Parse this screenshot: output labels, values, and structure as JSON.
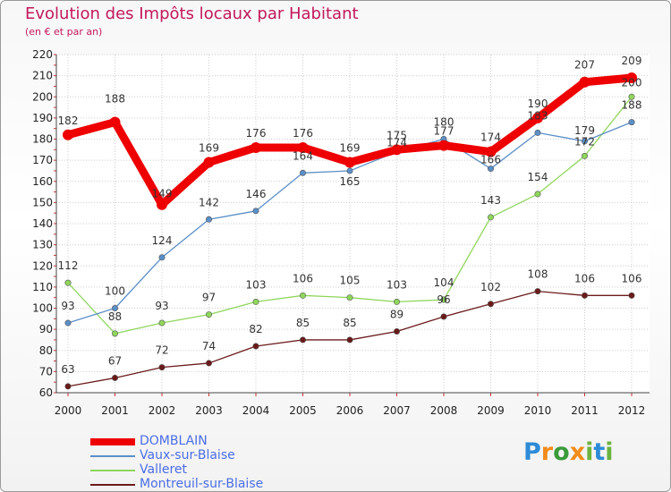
{
  "title": "Evolution des Impôts locaux par Habitant",
  "subtitle": "(en € et par an)",
  "logo_text": "Proxiti",
  "chart_data": {
    "type": "line",
    "x": [
      "2000",
      "2001",
      "2002",
      "2003",
      "2004",
      "2005",
      "2006",
      "2007",
      "2008",
      "2009",
      "2010",
      "2011",
      "2012"
    ],
    "ylim": [
      60,
      220
    ],
    "yticks": [
      60,
      70,
      80,
      90,
      100,
      110,
      120,
      130,
      140,
      150,
      160,
      170,
      180,
      190,
      200,
      210,
      220
    ],
    "grid": true,
    "legend_position": "bottom-left",
    "series": [
      {
        "name": "DOMBLAIN",
        "color": "#ee0000",
        "values": [
          182,
          188,
          149,
          169,
          176,
          176,
          169,
          175,
          177,
          174,
          190,
          207,
          209
        ]
      },
      {
        "name": "Vaux-sur-Blaise",
        "color": "#5b8fc7",
        "values": [
          93,
          100,
          124,
          142,
          146,
          164,
          165,
          174,
          180,
          166,
          183,
          179,
          188
        ]
      },
      {
        "name": "Valleret",
        "color": "#8fd65c",
        "values": [
          112,
          88,
          93,
          97,
          103,
          106,
          105,
          103,
          104,
          143,
          154,
          172,
          200
        ]
      },
      {
        "name": "Montreuil-sur-Blaise",
        "color": "#6b1a1a",
        "values": [
          63,
          67,
          72,
          74,
          82,
          85,
          85,
          89,
          96,
          102,
          108,
          106,
          106
        ]
      }
    ]
  }
}
